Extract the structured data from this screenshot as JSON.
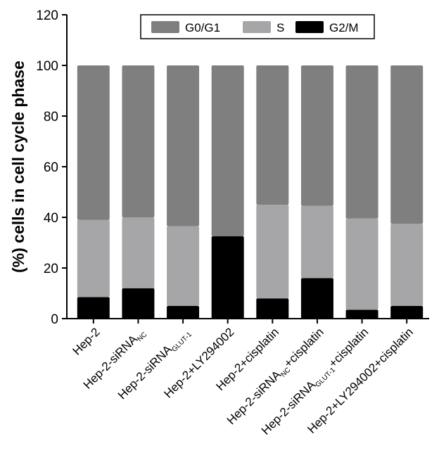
{
  "chart_data": {
    "type": "bar",
    "stacked": true,
    "categories": [
      {
        "main": "Hep-2",
        "sub": "",
        "suffix": ""
      },
      {
        "main": "Hep-2-siRNA",
        "sub": "NC",
        "suffix": ""
      },
      {
        "main": "Hep-2-siRNA",
        "sub": "GLUT-1",
        "suffix": ""
      },
      {
        "main": "Hep-2+LY294002",
        "sub": "",
        "suffix": ""
      },
      {
        "main": "Hep-2+cisplatin",
        "sub": "",
        "suffix": ""
      },
      {
        "main": "Hep-2-siRNA",
        "sub": "NC",
        "suffix": "+cisplatin"
      },
      {
        "main": "Hep-2-siRNA",
        "sub": "GLUT-1",
        "suffix": "+cisplatin"
      },
      {
        "main": "Hep-2+LY294002+cisplatin",
        "sub": "",
        "suffix": ""
      }
    ],
    "series": [
      {
        "name": "G2/M",
        "color": "#000000",
        "values": [
          8.5,
          12,
          5,
          32.5,
          8,
          16,
          3.5,
          5
        ]
      },
      {
        "name": "S",
        "color": "#a6a6a8",
        "values": [
          30.5,
          28,
          31.5,
          0,
          37,
          28.5,
          36,
          32.5
        ]
      },
      {
        "name": "G0/G1",
        "color": "#7f7f7f",
        "values": [
          61,
          60,
          63.5,
          67.5,
          55,
          55.5,
          60.5,
          62.5
        ]
      }
    ],
    "legend_order": [
      "G0/G1",
      "S",
      "G2/M"
    ],
    "legend_position": "top",
    "ylabel": "(%) cells in cell cycle phase",
    "xlabel": "",
    "ylim": [
      0,
      120
    ],
    "yticks": [
      0,
      20,
      40,
      60,
      80,
      100,
      120
    ],
    "grid": false
  }
}
